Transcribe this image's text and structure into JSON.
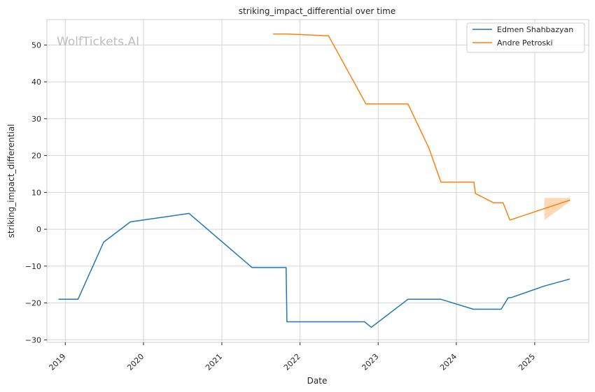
{
  "watermark": "WolfTickets.AI",
  "chart_data": {
    "type": "line",
    "title": "striking_impact_differential over time",
    "xlabel": "Date",
    "ylabel": "striking_impact_differential",
    "x_ticks": [
      "2019",
      "2020",
      "2021",
      "2022",
      "2023",
      "2024",
      "2025"
    ],
    "y_ticks": [
      50,
      40,
      30,
      20,
      10,
      0,
      -10,
      -20,
      -30
    ],
    "xlim": [
      "2018-10-07",
      "2025-09-10"
    ],
    "ylim": [
      -30.7,
      56.9
    ],
    "grid": true,
    "legend_position": "top-right",
    "series": [
      {
        "name": "Edmen Shahbazyan",
        "color": "#1f77b4",
        "points": [
          [
            "2018-11-30",
            -19.0
          ],
          [
            "2019-03-01",
            -19.0
          ],
          [
            "2019-06-29",
            -3.5
          ],
          [
            "2019-11-01",
            2.0
          ],
          [
            "2020-08-01",
            4.3
          ],
          [
            "2021-05-22",
            -10.4
          ],
          [
            "2021-10-28",
            -10.4
          ],
          [
            "2021-11-01",
            -25.1
          ],
          [
            "2022-10-29",
            -25.1
          ],
          [
            "2022-11-30",
            -26.6
          ],
          [
            "2023-05-20",
            -19.0
          ],
          [
            "2023-10-21",
            -19.0
          ],
          [
            "2024-03-20",
            -21.7
          ],
          [
            "2024-07-28",
            -21.7
          ],
          [
            "2024-08-30",
            -18.6
          ],
          [
            "2024-09-15",
            -18.5
          ],
          [
            "2025-02-15",
            -15.4
          ],
          [
            "2025-06-14",
            -13.5
          ]
        ]
      },
      {
        "name": "Andre Petroski",
        "color": "#ff7f0e",
        "points": [
          [
            "2021-08-28",
            53.0
          ],
          [
            "2021-10-30",
            53.0
          ],
          [
            "2022-05-14",
            52.5
          ],
          [
            "2022-11-05",
            34.0
          ],
          [
            "2023-05-20",
            34.0
          ],
          [
            "2023-08-26",
            22.0
          ],
          [
            "2023-10-21",
            12.8
          ],
          [
            "2024-03-23",
            12.8
          ],
          [
            "2024-03-30",
            9.7
          ],
          [
            "2024-06-22",
            7.2
          ],
          [
            "2024-08-06",
            7.2
          ],
          [
            "2024-09-07",
            2.5
          ],
          [
            "2025-06-14",
            7.9
          ]
        ],
        "band": {
          "upper": [
            [
              "2025-02-15",
              8.5
            ],
            [
              "2025-06-14",
              8.5
            ]
          ],
          "lower": [
            [
              "2025-02-15",
              2.5
            ],
            [
              "2025-06-14",
              7.5
            ]
          ]
        }
      }
    ]
  }
}
